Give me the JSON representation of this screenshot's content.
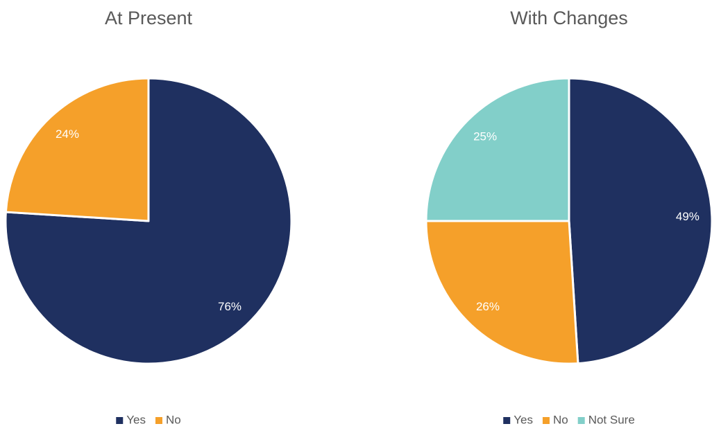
{
  "chart_data": [
    {
      "type": "pie",
      "title": "At Present",
      "categories": [
        "Yes",
        "No"
      ],
      "values": [
        76,
        24
      ],
      "value_labels": [
        "76%",
        "24%"
      ],
      "colors": [
        "#1f3060",
        "#f5a02a"
      ]
    },
    {
      "type": "pie",
      "title": "With Changes",
      "categories": [
        "Yes",
        "No",
        "Not Sure"
      ],
      "values": [
        49,
        26,
        25
      ],
      "value_labels": [
        "49%",
        "26%",
        "25%"
      ],
      "colors": [
        "#1f3060",
        "#f5a02a",
        "#82cfc9"
      ]
    }
  ]
}
